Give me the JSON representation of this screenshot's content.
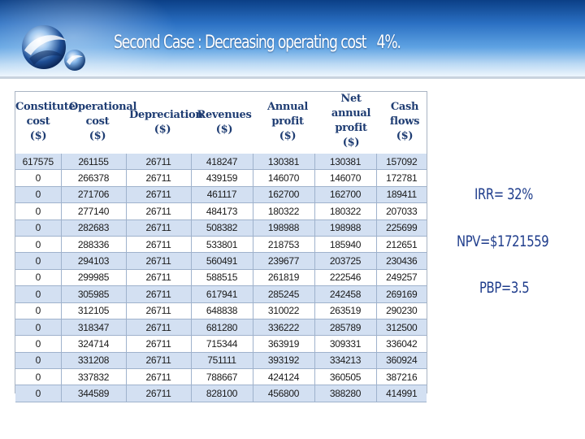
{
  "slide": {
    "title": "Second Case : Decreasing operating cost   4%."
  },
  "logo": {
    "icon": "globe-swirl-icon"
  },
  "table": {
    "headers": [
      "Constitute\ncost\n($)",
      "Operational\ncost\n($)",
      "Depreciation\n($)",
      "Revenues\n($)",
      "Annual\nprofit\n($)",
      "Net\nannual\nprofit\n($)",
      "Cash\nflows\n($)"
    ],
    "rows": [
      [
        "617575",
        "261155",
        "26711",
        "418247",
        "130381",
        "130381",
        "157092"
      ],
      [
        "0",
        "266378",
        "26711",
        "439159",
        "146070",
        "146070",
        "172781"
      ],
      [
        "0",
        "271706",
        "26711",
        "461117",
        "162700",
        "162700",
        "189411"
      ],
      [
        "0",
        "277140",
        "26711",
        "484173",
        "180322",
        "180322",
        "207033"
      ],
      [
        "0",
        "282683",
        "26711",
        "508382",
        "198988",
        "198988",
        "225699"
      ],
      [
        "0",
        "288336",
        "26711",
        "533801",
        "218753",
        "185940",
        "212651"
      ],
      [
        "0",
        "294103",
        "26711",
        "560491",
        "239677",
        "203725",
        "230436"
      ],
      [
        "0",
        "299985",
        "26711",
        "588515",
        "261819",
        "222546",
        "249257"
      ],
      [
        "0",
        "305985",
        "26711",
        "617941",
        "285245",
        "242458",
        "269169"
      ],
      [
        "0",
        "312105",
        "26711",
        "648838",
        "310022",
        "263519",
        "290230"
      ],
      [
        "0",
        "318347",
        "26711",
        "681280",
        "336222",
        "285789",
        "312500"
      ],
      [
        "0",
        "324714",
        "26711",
        "715344",
        "363919",
        "309331",
        "336042"
      ],
      [
        "0",
        "331208",
        "26711",
        "751111",
        "393192",
        "334213",
        "360924"
      ],
      [
        "0",
        "337832",
        "26711",
        "788667",
        "424124",
        "360505",
        "387216"
      ],
      [
        "0",
        "344589",
        "26711",
        "828100",
        "456800",
        "388280",
        "414991"
      ]
    ]
  },
  "metrics": {
    "irr": "IRR= 32%",
    "npv": "NPV=$1721559",
    "pbp": "PBP=3.5"
  }
}
